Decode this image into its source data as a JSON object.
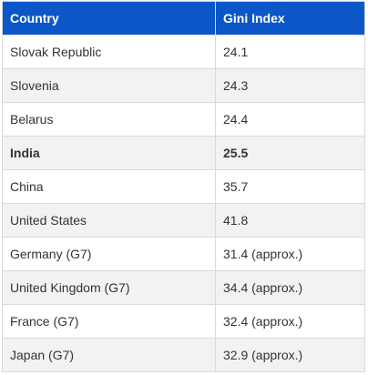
{
  "table": {
    "headers": [
      "Country",
      "Gini Index"
    ],
    "rows": [
      {
        "country": "Slovak Republic",
        "gini": "24.1"
      },
      {
        "country": "Slovenia",
        "gini": "24.3"
      },
      {
        "country": "Belarus",
        "gini": "24.4"
      },
      {
        "country": "India",
        "gini": "25.5"
      },
      {
        "country": "China",
        "gini": "35.7"
      },
      {
        "country": "United States",
        "gini": "41.8"
      },
      {
        "country": "Germany (G7)",
        "gini": "31.4 (approx.)"
      },
      {
        "country": "United Kingdom (G7)",
        "gini": "34.4 (approx.)"
      },
      {
        "country": "France (G7)",
        "gini": "32.4 (approx.)"
      },
      {
        "country": "Japan (G7)",
        "gini": "32.9 (approx.)"
      }
    ]
  },
  "colors": {
    "header_bg": "#0b57c8",
    "header_text": "#ffffff",
    "alt_row_bg": "#f2f2f2",
    "border": "#d9d9d9"
  }
}
